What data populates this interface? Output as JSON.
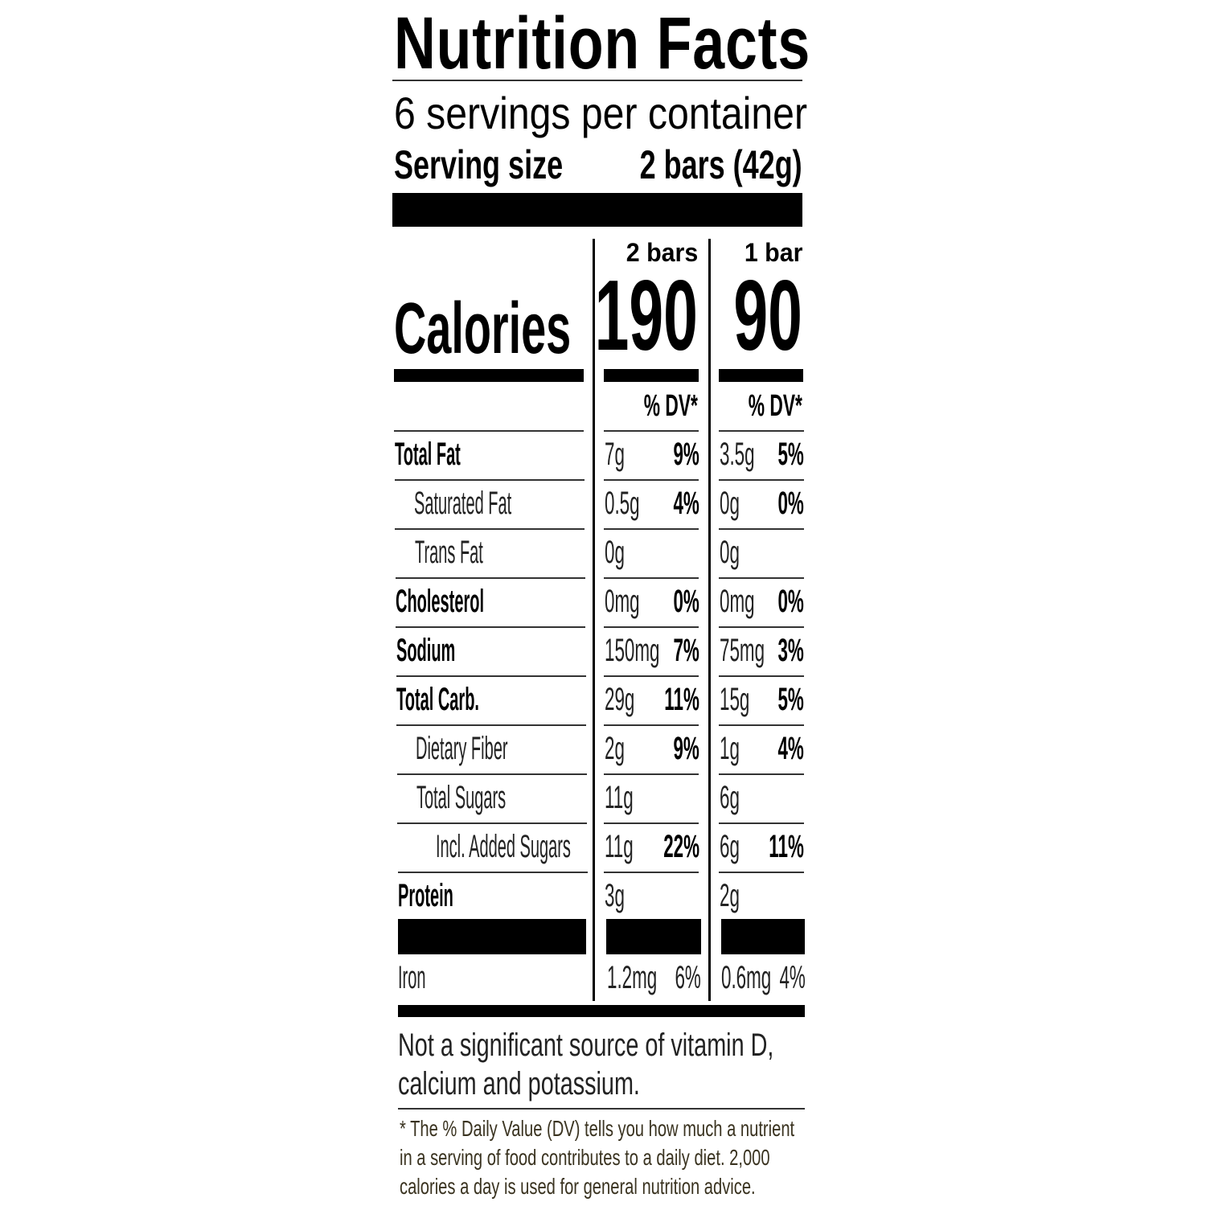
{
  "title": "Nutrition Facts",
  "servings_per_container": "6 servings per container",
  "serving_size_label": "Serving size",
  "serving_size_value": "2 bars (42g)",
  "columns": [
    {
      "header": "2 bars",
      "calories": "190",
      "dv_label": "% DV*"
    },
    {
      "header": "1 bar",
      "calories": "90",
      "dv_label": "% DV*"
    }
  ],
  "calories_label": "Calories",
  "nutrients": [
    {
      "name": "Total Fat",
      "bold": true,
      "indent": 0,
      "v1": "7g",
      "d1": "9%",
      "v2": "3.5g",
      "d2": "5%"
    },
    {
      "name": "Saturated Fat",
      "bold": false,
      "indent": 1,
      "v1": "0.5g",
      "d1": "4%",
      "v2": "0g",
      "d2": "0%"
    },
    {
      "name": "Trans Fat",
      "bold": false,
      "indent": 1,
      "v1": "0g",
      "d1": "",
      "v2": "0g",
      "d2": ""
    },
    {
      "name": "Cholesterol",
      "bold": true,
      "indent": 0,
      "v1": "0mg",
      "d1": "0%",
      "v2": "0mg",
      "d2": "0%"
    },
    {
      "name": "Sodium",
      "bold": true,
      "indent": 0,
      "v1": "150mg",
      "d1": "7%",
      "v2": "75mg",
      "d2": "3%"
    },
    {
      "name": "Total Carb.",
      "bold": true,
      "indent": 0,
      "v1": "29g",
      "d1": "11%",
      "v2": "15g",
      "d2": "5%"
    },
    {
      "name": "Dietary Fiber",
      "bold": false,
      "indent": 1,
      "v1": "2g",
      "d1": "9%",
      "v2": "1g",
      "d2": "4%"
    },
    {
      "name": "Total Sugars",
      "bold": false,
      "indent": 1,
      "v1": "11g",
      "d1": "",
      "v2": "6g",
      "d2": ""
    },
    {
      "name": "Incl. Added Sugars",
      "bold": false,
      "indent": 2,
      "v1": "11g",
      "d1": "22%",
      "v2": "6g",
      "d2": "11%"
    },
    {
      "name": "Protein",
      "bold": true,
      "indent": 0,
      "v1": "3g",
      "d1": "",
      "v2": "2g",
      "d2": ""
    }
  ],
  "vitamins": [
    {
      "name": "Iron",
      "v1": "1.2mg",
      "d1": "6%",
      "v2": "0.6mg",
      "d2": "4%"
    }
  ],
  "note": "Not a significant source of vitamin D, calcium and potassium.",
  "footnote": "* The % Daily Value (DV) tells you how much a nutrient in a serving of food contributes to a daily diet. 2,000 calories a day is used for general nutrition advice."
}
